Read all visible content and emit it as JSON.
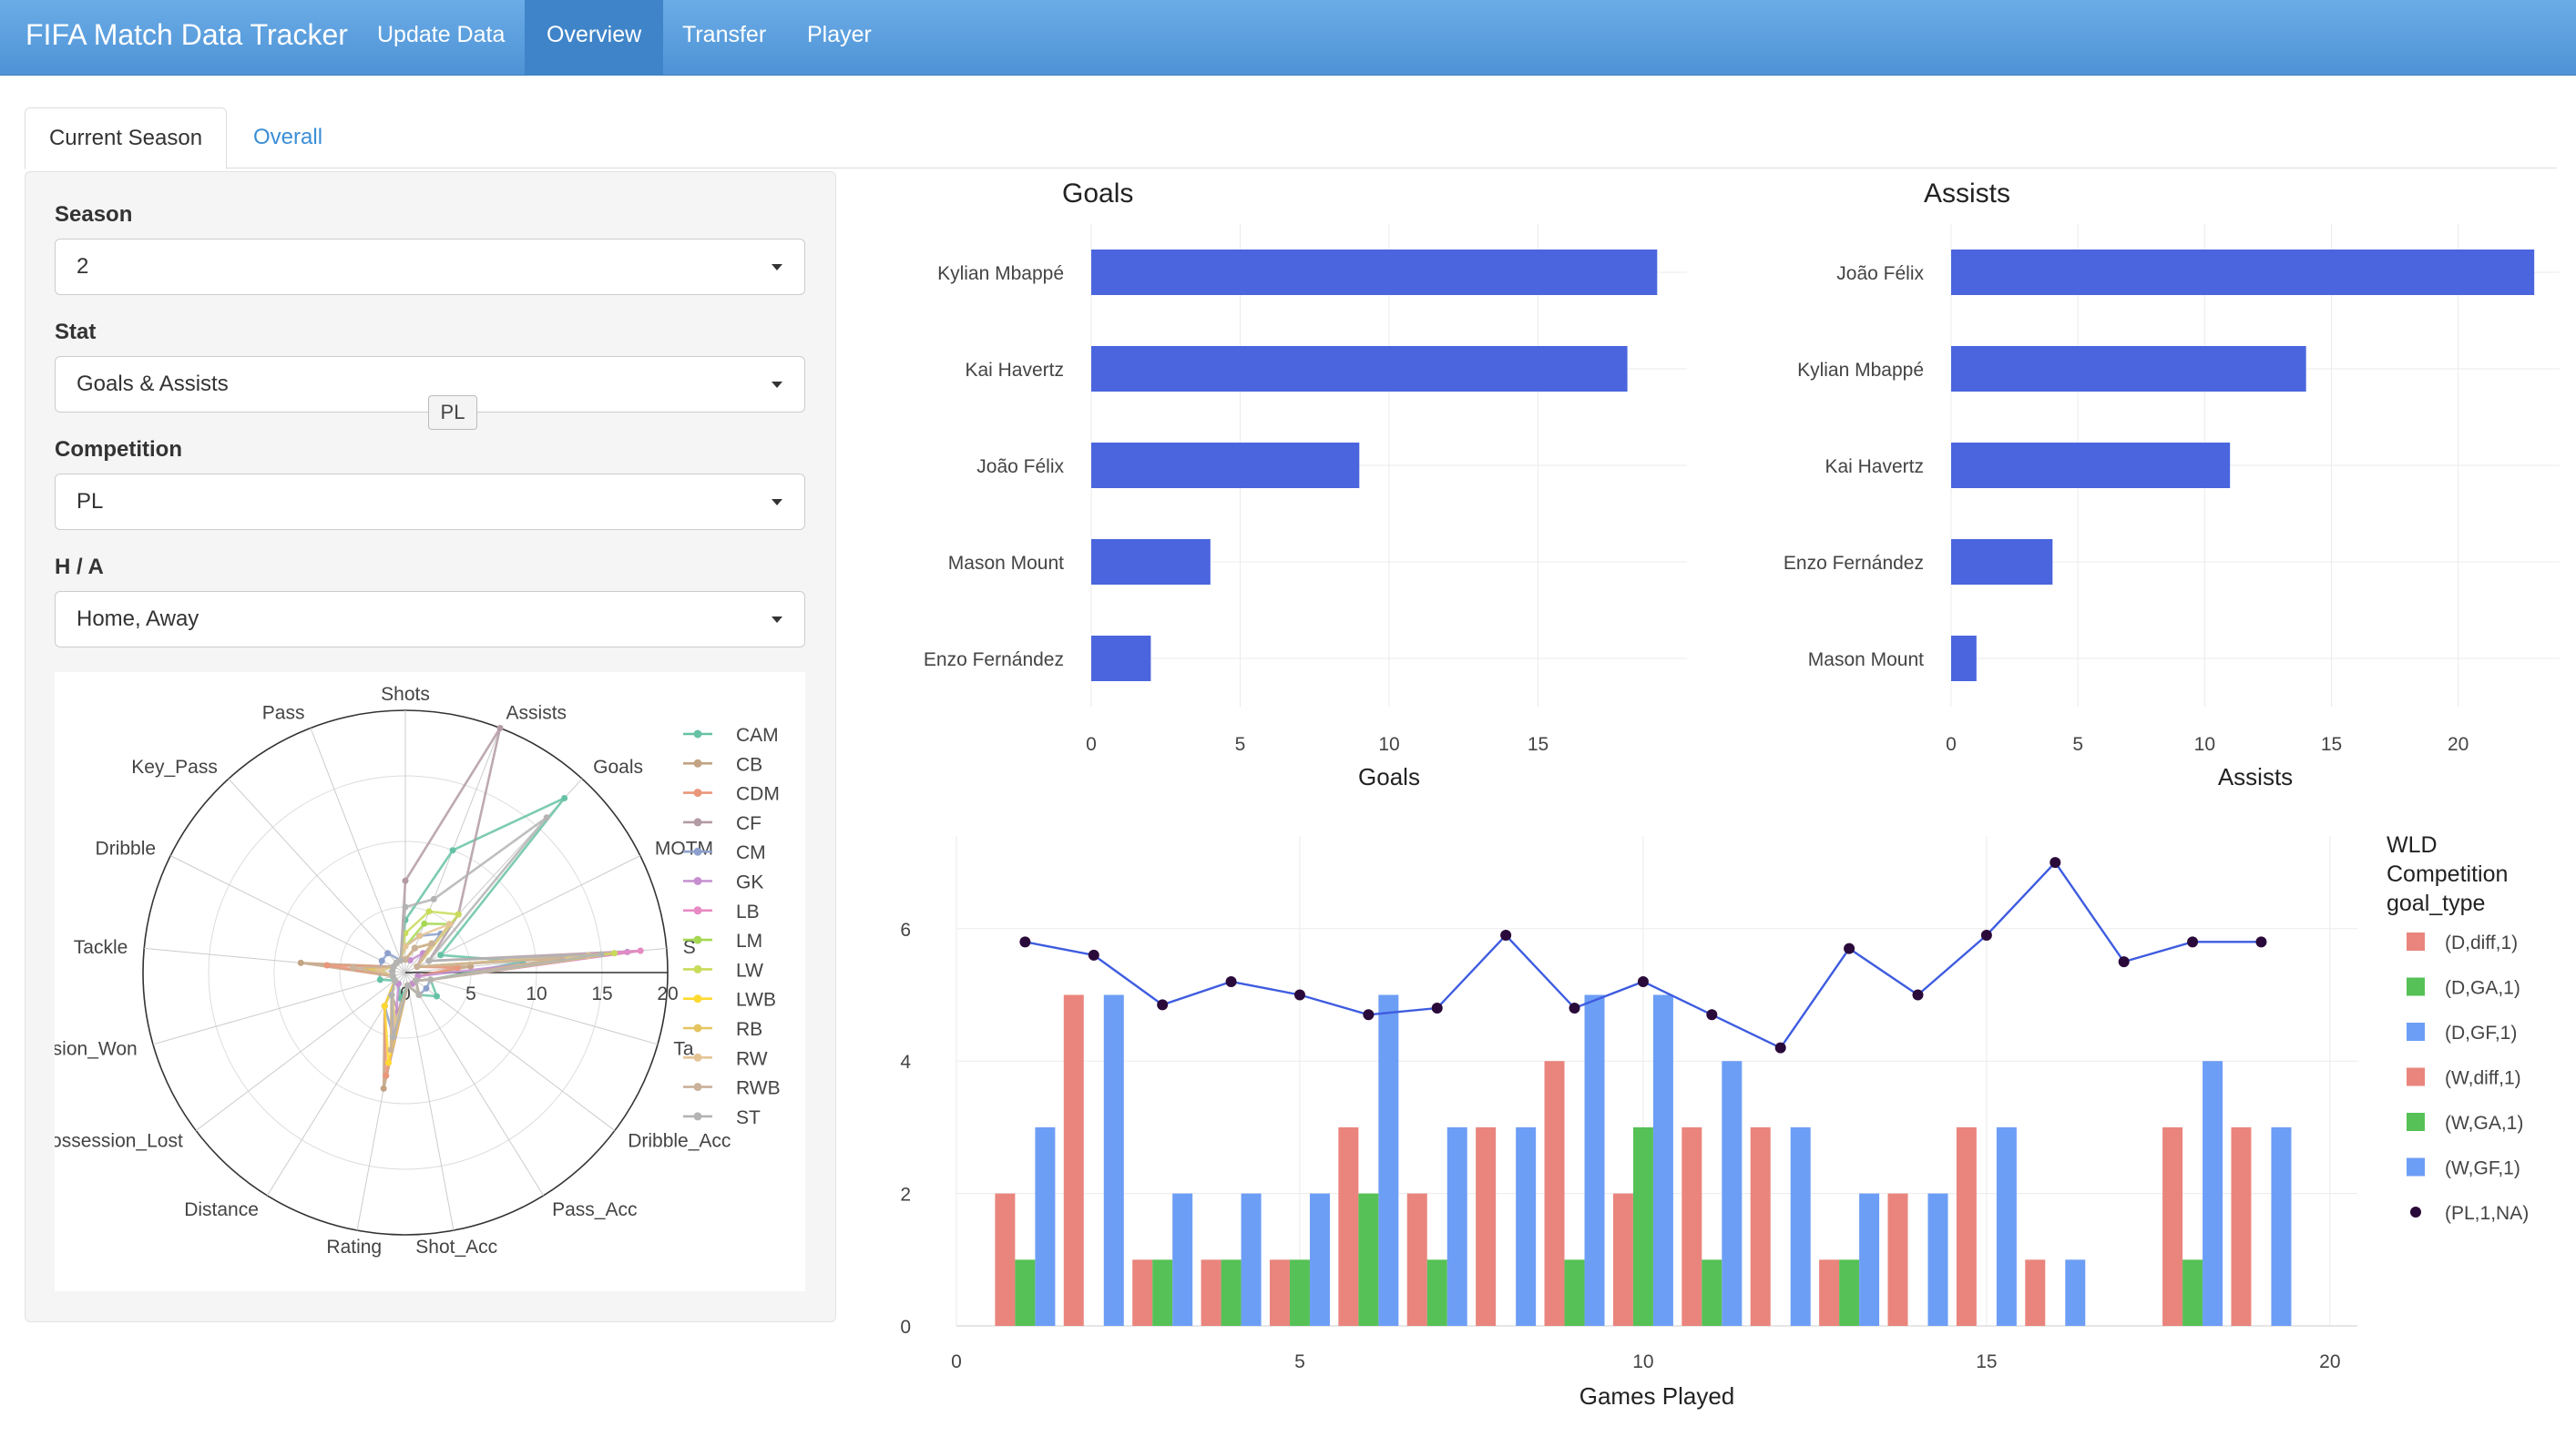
{
  "app": {
    "title": "FIFA Match Data Tracker",
    "nav": [
      "Update Data",
      "Overview",
      "Transfer",
      "Player"
    ],
    "active_nav": "Overview"
  },
  "tabs": [
    "Current Season",
    "Overall"
  ],
  "active_tab": "Current Season",
  "filters": {
    "season_label": "Season",
    "season_value": "2",
    "stat_label": "Stat",
    "stat_value": "Goals & Assists",
    "competition_label": "Competition",
    "competition_value": "PL",
    "ha_label": "H / A",
    "ha_value": "Home, Away",
    "tooltip": "PL"
  },
  "colors": {
    "accent": "#3a8ed6",
    "bar": "#4a65dd",
    "nav": "#5a9ee0",
    "line": "#3e5ce0",
    "dot": "#2a0a3a"
  },
  "chart_data": [
    {
      "type": "radar",
      "axes": [
        "Assists",
        "Goals",
        "MOTM",
        "S",
        "Ta",
        "Dribble_Acc",
        "Pass_Acc",
        "Shot_Acc",
        "Rating",
        "Distance",
        "Possession_Lost",
        "ssion_Won",
        "Tackle",
        "Dribble",
        "Key_Pass",
        "Pass",
        "Shots"
      ],
      "radial_ticks": [
        "0",
        "5",
        "10",
        "15",
        "20"
      ],
      "rmax": 20,
      "series": [
        {
          "name": "CAM",
          "color": "#66c2a5",
          "values": [
            10,
            18,
            3,
            9,
            2,
            3,
            2,
            1,
            2,
            1,
            1,
            2,
            2,
            1,
            1,
            1,
            4
          ]
        },
        {
          "name": "CB",
          "color": "#c2a383",
          "values": [
            2,
            3,
            1,
            5,
            1,
            1,
            2,
            1,
            9,
            3,
            1,
            1,
            8,
            1,
            1,
            1,
            1
          ]
        },
        {
          "name": "CDM",
          "color": "#e9967a",
          "values": [
            2,
            3,
            1,
            4,
            1,
            1,
            2,
            1,
            8,
            3,
            1,
            1,
            6,
            1,
            1,
            1,
            1
          ]
        },
        {
          "name": "CF",
          "color": "#b39aa4",
          "values": [
            20,
            6,
            2,
            18,
            2,
            1,
            2,
            1,
            3,
            2,
            1,
            1,
            1,
            1,
            1,
            1,
            7
          ]
        },
        {
          "name": "CM",
          "color": "#8da0cb",
          "values": [
            3,
            4,
            1,
            16,
            2,
            2,
            2,
            1,
            5,
            3,
            1,
            1,
            2,
            2,
            2,
            1,
            2
          ]
        },
        {
          "name": "GK",
          "color": "#c58fcf",
          "values": [
            1,
            2,
            1,
            17,
            1,
            1,
            1,
            1,
            4,
            1,
            1,
            1,
            1,
            1,
            1,
            1,
            1
          ]
        },
        {
          "name": "LB",
          "color": "#e78ac3",
          "values": [
            2,
            3,
            1,
            18,
            2,
            1,
            2,
            1,
            5,
            2,
            1,
            1,
            3,
            1,
            1,
            1,
            1
          ]
        },
        {
          "name": "LM",
          "color": "#a6d854",
          "values": [
            4,
            5,
            1,
            15,
            2,
            1,
            2,
            1,
            4,
            2,
            1,
            1,
            2,
            1,
            1,
            1,
            2
          ]
        },
        {
          "name": "LW",
          "color": "#c9dc5a",
          "values": [
            5,
            6,
            1,
            16,
            2,
            1,
            2,
            1,
            4,
            2,
            1,
            1,
            2,
            1,
            1,
            1,
            3
          ]
        },
        {
          "name": "LWB",
          "color": "#ffd92f",
          "values": [
            2,
            3,
            1,
            14,
            2,
            1,
            2,
            1,
            7,
            3,
            1,
            1,
            3,
            1,
            1,
            1,
            1
          ]
        },
        {
          "name": "RB",
          "color": "#e5c45f",
          "values": [
            2,
            3,
            1,
            12,
            2,
            1,
            2,
            1,
            6,
            2,
            1,
            1,
            3,
            1,
            1,
            1,
            1
          ]
        },
        {
          "name": "RW",
          "color": "#e5c494",
          "values": [
            3,
            5,
            1,
            14,
            2,
            1,
            2,
            1,
            4,
            2,
            1,
            1,
            2,
            1,
            1,
            1,
            2
          ]
        },
        {
          "name": "RWB",
          "color": "#c9b19a",
          "values": [
            2,
            3,
            1,
            12,
            2,
            1,
            2,
            1,
            6,
            2,
            1,
            1,
            4,
            1,
            1,
            1,
            1
          ]
        },
        {
          "name": "ST",
          "color": "#b3b3b3",
          "values": [
            6,
            16,
            2,
            15,
            2,
            1,
            2,
            1,
            5,
            2,
            1,
            1,
            1,
            1,
            1,
            1,
            5
          ]
        }
      ]
    },
    {
      "type": "bar",
      "orientation": "horizontal",
      "title": "Goals",
      "xlabel": "Goals",
      "categories": [
        "Kylian Mbappé",
        "Kai Havertz",
        "João Félix",
        "Mason Mount",
        "Enzo Fernández"
      ],
      "values": [
        19,
        18,
        9,
        4,
        2
      ],
      "xticks": [
        0,
        5,
        10,
        15
      ],
      "xlim": [
        0,
        20
      ]
    },
    {
      "type": "bar",
      "orientation": "horizontal",
      "title": "Assists",
      "xlabel": "Assists",
      "categories": [
        "João Félix",
        "Kylian Mbappé",
        "Kai Havertz",
        "Enzo Fernández",
        "Mason Mount"
      ],
      "values": [
        23,
        14,
        11,
        4,
        1
      ],
      "xticks": [
        0,
        5,
        10,
        15,
        20
      ],
      "xlim": [
        0,
        24
      ]
    },
    {
      "type": "bar+line",
      "xlabel": "Games Played",
      "xticks": [
        0,
        5,
        10,
        15,
        20
      ],
      "yticks": [
        0,
        2,
        4,
        6
      ],
      "xlim": [
        0,
        20.4
      ],
      "ylim": [
        0,
        7.4
      ],
      "legend_title": [
        "WLD",
        "Competition",
        "goal_type"
      ],
      "series": [
        {
          "name": "(D,diff,1)",
          "color": "#e9857d",
          "bars": [
            [
              1,
              2
            ],
            [
              2,
              5
            ],
            [
              3,
              1
            ],
            [
              4,
              1
            ],
            [
              5,
              1
            ],
            [
              6,
              3
            ],
            [
              7,
              2
            ],
            [
              8,
              3
            ],
            [
              9,
              4
            ],
            [
              10,
              2
            ],
            [
              11,
              3
            ],
            [
              12,
              3
            ],
            [
              13,
              1
            ],
            [
              14,
              2
            ],
            [
              15,
              3
            ],
            [
              16,
              1
            ],
            [
              18,
              3
            ],
            [
              19,
              3
            ]
          ]
        },
        {
          "name": "(D,GA,1)",
          "color": "#56c156",
          "bars": [
            [
              1,
              1
            ],
            [
              3,
              1
            ],
            [
              4,
              1
            ],
            [
              5,
              1
            ],
            [
              6,
              2
            ],
            [
              7,
              1
            ],
            [
              9,
              1
            ],
            [
              10,
              3
            ],
            [
              11,
              1
            ],
            [
              13,
              1
            ],
            [
              18,
              1
            ]
          ]
        },
        {
          "name": "(D,GF,1)",
          "color": "#6d9ef5",
          "bars": [
            [
              1,
              3
            ],
            [
              2,
              5
            ],
            [
              3,
              2
            ],
            [
              4,
              2
            ],
            [
              5,
              2
            ],
            [
              6,
              5
            ],
            [
              7,
              3
            ],
            [
              8,
              3
            ],
            [
              9,
              5
            ],
            [
              10,
              5
            ],
            [
              11,
              4
            ],
            [
              12,
              3
            ],
            [
              13,
              2
            ],
            [
              14,
              2
            ],
            [
              15,
              3
            ],
            [
              16,
              1
            ],
            [
              18,
              4
            ],
            [
              19,
              3
            ]
          ]
        },
        {
          "name": "(W,diff,1)",
          "color": "#e9857d",
          "bars": []
        },
        {
          "name": "(W,GA,1)",
          "color": "#56c156",
          "bars": []
        },
        {
          "name": "(W,GF,1)",
          "color": "#6d9ef5",
          "bars": []
        },
        {
          "name": "(PL,1,NA)",
          "type": "line",
          "color": "#2a0a3a",
          "points": [
            [
              1,
              5.8
            ],
            [
              2,
              5.6
            ],
            [
              3,
              4.85
            ],
            [
              4,
              5.2
            ],
            [
              5,
              5.0
            ],
            [
              6,
              4.7
            ],
            [
              7,
              4.8
            ],
            [
              8,
              5.9
            ],
            [
              9,
              4.8
            ],
            [
              10,
              5.2
            ],
            [
              11,
              4.7
            ],
            [
              12,
              4.2
            ],
            [
              13,
              5.7
            ],
            [
              14,
              5.0
            ],
            [
              15,
              5.9
            ],
            [
              16,
              7.0
            ],
            [
              17,
              5.5
            ],
            [
              18,
              5.8
            ],
            [
              19,
              5.8
            ]
          ]
        }
      ]
    }
  ]
}
